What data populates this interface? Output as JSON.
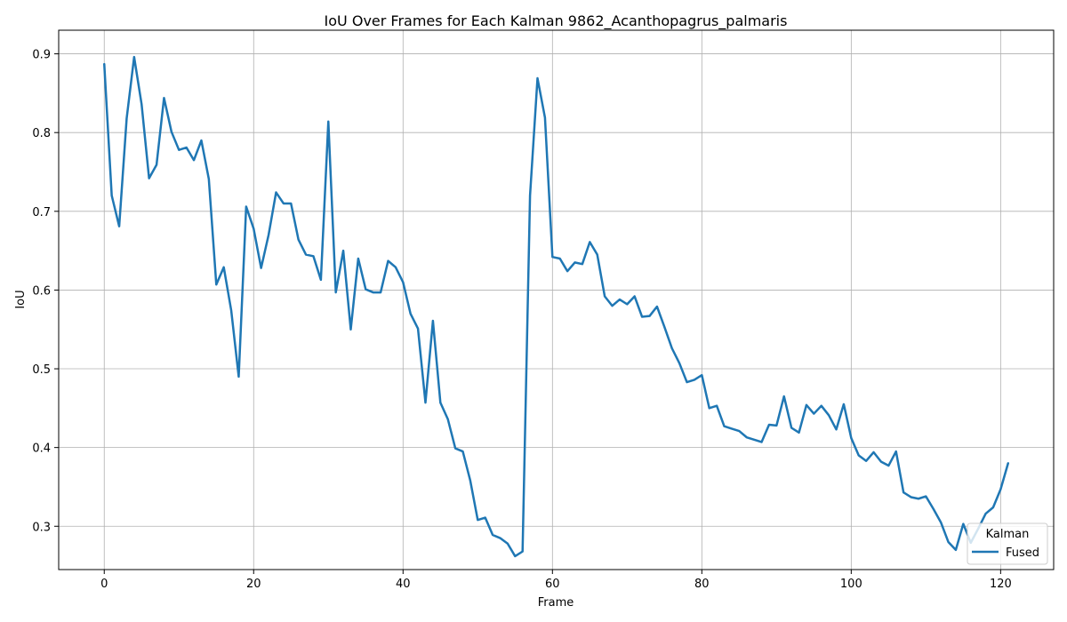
{
  "colors": {
    "series": "#1f77b4",
    "grid": "#b0b0b0"
  },
  "chart_data": {
    "type": "line",
    "title": "IoU Over Frames for Each Kalman 9862_Acanthopagrus_palmaris",
    "xlabel": "Frame",
    "ylabel": "IoU",
    "xlim": [
      -6.1,
      127.1
    ],
    "ylim": [
      0.245,
      0.93
    ],
    "xticks": [
      0,
      20,
      40,
      60,
      80,
      100,
      120
    ],
    "yticks": [
      0.3,
      0.4,
      0.5,
      0.6,
      0.7,
      0.8,
      0.9
    ],
    "grid": true,
    "legend": {
      "title": "Kalman",
      "placement": "lower-right"
    },
    "series": [
      {
        "name": "Fused",
        "color": "#1f77b4",
        "x": [
          0,
          1,
          2,
          3,
          4,
          5,
          6,
          7,
          8,
          9,
          10,
          11,
          12,
          13,
          14,
          15,
          16,
          17,
          18,
          19,
          20,
          21,
          22,
          23,
          24,
          25,
          26,
          27,
          28,
          29,
          30,
          31,
          32,
          33,
          34,
          35,
          36,
          37,
          38,
          39,
          40,
          41,
          42,
          43,
          44,
          45,
          46,
          47,
          48,
          49,
          50,
          51,
          52,
          53,
          54,
          55,
          56,
          57,
          58,
          59,
          60,
          61,
          62,
          63,
          64,
          65,
          66,
          67,
          68,
          69,
          70,
          71,
          72,
          73,
          74,
          75,
          76,
          77,
          78,
          79,
          80,
          81,
          82,
          83,
          84,
          85,
          86,
          87,
          88,
          89,
          90,
          91,
          92,
          93,
          94,
          95,
          96,
          97,
          98,
          99,
          100,
          101,
          102,
          103,
          104,
          105,
          106,
          107,
          108,
          109,
          110,
          111,
          112,
          113,
          114,
          115,
          116,
          117,
          118,
          119,
          120,
          121
        ],
        "values": [
          0.887,
          0.72,
          0.681,
          0.818,
          0.896,
          0.836,
          0.742,
          0.759,
          0.844,
          0.801,
          0.778,
          0.781,
          0.765,
          0.79,
          0.741,
          0.607,
          0.629,
          0.574,
          0.49,
          0.706,
          0.678,
          0.628,
          0.67,
          0.724,
          0.71,
          0.71,
          0.664,
          0.645,
          0.643,
          0.613,
          0.814,
          0.597,
          0.65,
          0.55,
          0.64,
          0.601,
          0.597,
          0.597,
          0.637,
          0.629,
          0.61,
          0.57,
          0.551,
          0.457,
          0.561,
          0.457,
          0.436,
          0.399,
          0.395,
          0.358,
          0.308,
          0.311,
          0.289,
          0.285,
          0.278,
          0.262,
          0.268,
          0.72,
          0.869,
          0.819,
          0.642,
          0.64,
          0.624,
          0.635,
          0.633,
          0.661,
          0.645,
          0.592,
          0.58,
          0.588,
          0.582,
          0.592,
          0.566,
          0.567,
          0.579,
          0.553,
          0.526,
          0.507,
          0.483,
          0.486,
          0.492,
          0.45,
          0.453,
          0.427,
          0.424,
          0.421,
          0.413,
          0.41,
          0.407,
          0.429,
          0.428,
          0.465,
          0.425,
          0.419,
          0.454,
          0.443,
          0.453,
          0.441,
          0.423,
          0.455,
          0.412,
          0.39,
          0.383,
          0.394,
          0.382,
          0.377,
          0.395,
          0.343,
          0.337,
          0.335,
          0.338,
          0.322,
          0.305,
          0.28,
          0.27,
          0.303,
          0.279,
          0.297,
          0.316,
          0.324,
          0.347,
          0.38
        ]
      }
    ]
  }
}
